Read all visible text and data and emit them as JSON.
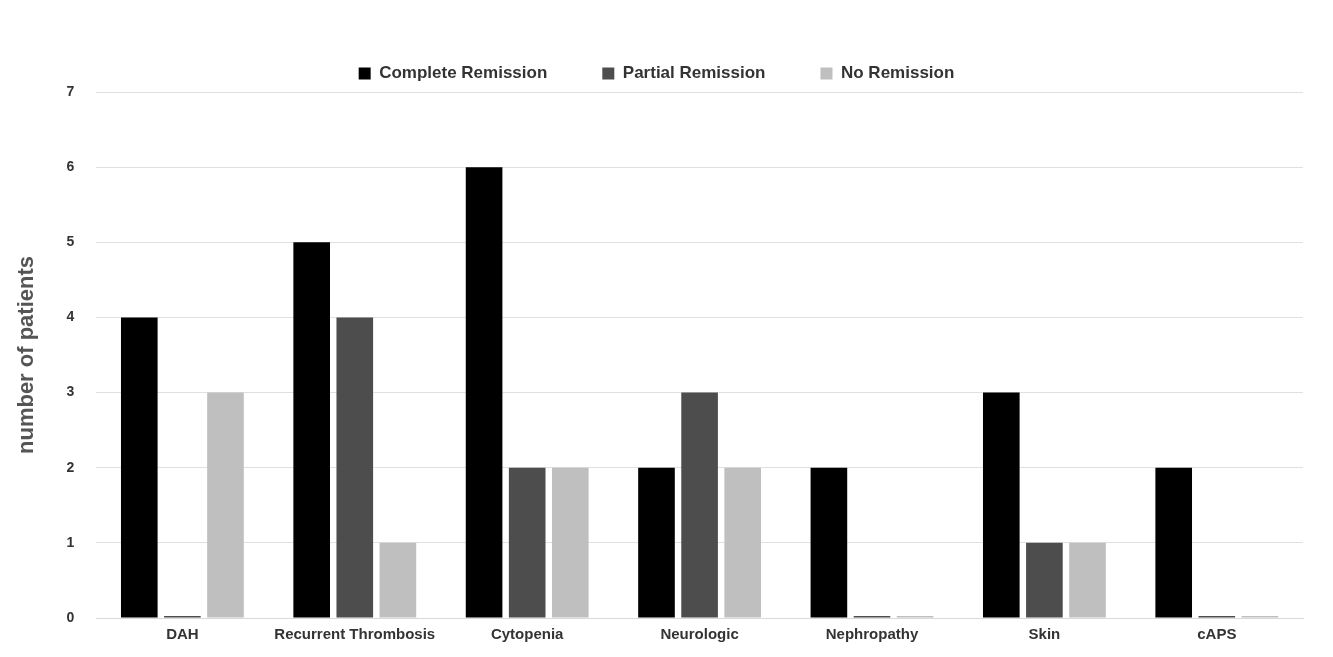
{
  "chart_data": {
    "type": "bar",
    "ylabel": "number of patients",
    "categories": [
      "DAH",
      "Recurrent Thrombosis",
      "Cytopenia",
      "Neurologic",
      "Nephropathy",
      "Skin",
      "cAPS"
    ],
    "series": [
      {
        "name": "Complete Remission",
        "color": "#000000",
        "values": [
          4,
          5,
          6,
          2,
          2,
          3,
          2
        ]
      },
      {
        "name": "Partial Remission",
        "color": "#4d4d4d",
        "values": [
          0,
          4,
          2,
          3,
          0,
          1,
          0
        ]
      },
      {
        "name": "No Remission",
        "color": "#bfbfbf",
        "values": [
          3,
          1,
          2,
          2,
          0,
          1,
          0
        ]
      }
    ],
    "ylim": [
      0,
      7
    ],
    "yticks": [
      0,
      1,
      2,
      3,
      4,
      5,
      6,
      7
    ],
    "grid": "y",
    "legend": "top"
  }
}
